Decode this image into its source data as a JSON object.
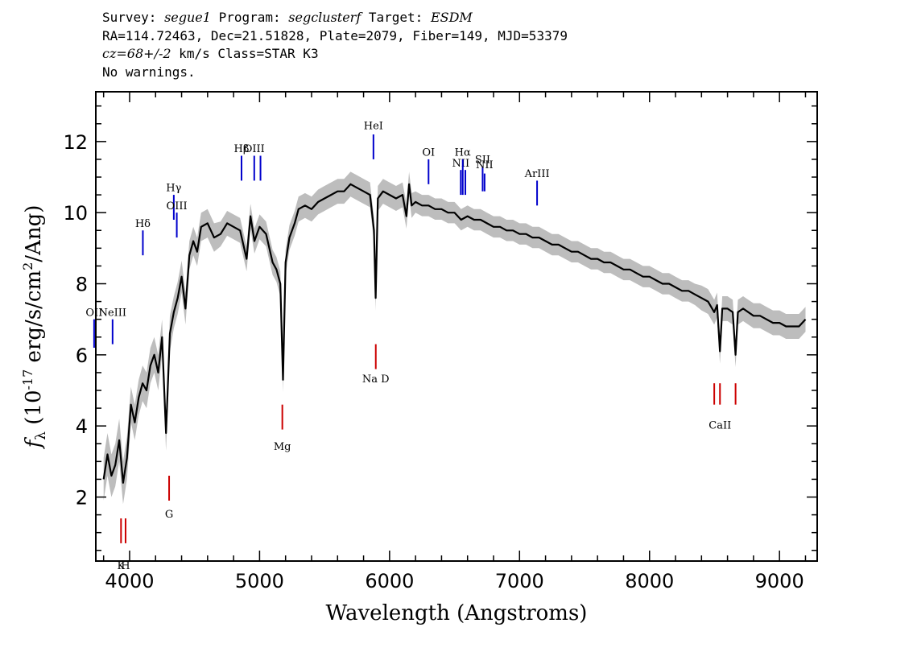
{
  "header": {
    "line1": {
      "survey_label": "Survey: ",
      "survey": "segue1",
      "program_label": " Program: ",
      "program": "segclusterf",
      "target_label": " Target: ",
      "target": "ESDM"
    },
    "line2": "RA=114.72463, Dec=21.51828, Plate=2079, Fiber=149, MJD=53379",
    "line3": {
      "cz": "cz=68+/-2",
      "rest": " km/s Class=STAR K3"
    },
    "line4": "No warnings."
  },
  "colors": {
    "spectrum": "#000000",
    "error_band": "#bdbdbd",
    "emission_line": "#0000cc",
    "absorption_line": "#cc0000",
    "axes": "#000000"
  },
  "chart_data": {
    "type": "line",
    "title": "",
    "xlabel": "Wavelength (Angstroms)",
    "ylabel": "f_λ (10^-17 erg/s/cm^2/Ang)",
    "xlim": [
      3740,
      9290
    ],
    "ylim": [
      0.2,
      13.4
    ],
    "x_ticks": [
      4000,
      5000,
      6000,
      7000,
      8000,
      9000
    ],
    "y_ticks": [
      2,
      4,
      6,
      8,
      10,
      12
    ],
    "grid": false,
    "legend": "none",
    "series": [
      {
        "x": [
          3800,
          3830,
          3860,
          3890,
          3920,
          3950,
          3980,
          4010,
          4040,
          4070,
          4100,
          4130,
          4160,
          4190,
          4220,
          4250,
          4280,
          4310,
          4340,
          4370,
          4400,
          4430,
          4460,
          4490,
          4520,
          4550,
          4600,
          4650,
          4700,
          4750,
          4800,
          4850,
          4900,
          4930,
          4960,
          5000,
          5050,
          5100,
          5130,
          5160,
          5180,
          5200,
          5230,
          5270,
          5300,
          5350,
          5400,
          5450,
          5500,
          5550,
          5600,
          5650,
          5700,
          5750,
          5800,
          5850,
          5880,
          5893,
          5910,
          5950,
          6000,
          6050,
          6100,
          6130,
          6150,
          6170,
          6200,
          6250,
          6300,
          6350,
          6400,
          6450,
          6500,
          6550,
          6600,
          6650,
          6700,
          6750,
          6800,
          6850,
          6900,
          6950,
          7000,
          7050,
          7100,
          7150,
          7200,
          7250,
          7300,
          7350,
          7400,
          7450,
          7500,
          7550,
          7600,
          7650,
          7700,
          7750,
          7800,
          7850,
          7900,
          7950,
          8000,
          8050,
          8100,
          8150,
          8200,
          8250,
          8300,
          8350,
          8400,
          8450,
          8498,
          8520,
          8542,
          8560,
          8600,
          8640,
          8662,
          8680,
          8720,
          8760,
          8800,
          8850,
          8900,
          8950,
          9000,
          9050,
          9100,
          9150,
          9200
        ],
        "flux": [
          2.5,
          3.2,
          2.6,
          2.9,
          3.6,
          2.4,
          3.1,
          4.6,
          4.1,
          4.8,
          5.2,
          5.0,
          5.7,
          6.0,
          5.5,
          6.5,
          3.8,
          6.6,
          7.2,
          7.6,
          8.2,
          7.3,
          8.8,
          9.2,
          8.9,
          9.6,
          9.7,
          9.3,
          9.4,
          9.7,
          9.6,
          9.5,
          8.7,
          9.9,
          9.2,
          9.6,
          9.4,
          8.6,
          8.4,
          8.0,
          5.3,
          8.6,
          9.3,
          9.7,
          10.1,
          10.2,
          10.1,
          10.3,
          10.4,
          10.5,
          10.6,
          10.6,
          10.8,
          10.7,
          10.6,
          10.5,
          9.5,
          7.6,
          10.4,
          10.6,
          10.5,
          10.4,
          10.5,
          9.9,
          10.8,
          10.2,
          10.3,
          10.2,
          10.2,
          10.1,
          10.1,
          10.0,
          10.0,
          9.8,
          9.9,
          9.8,
          9.8,
          9.7,
          9.6,
          9.6,
          9.5,
          9.5,
          9.4,
          9.4,
          9.3,
          9.3,
          9.2,
          9.1,
          9.1,
          9.0,
          8.9,
          8.9,
          8.8,
          8.7,
          8.7,
          8.6,
          8.6,
          8.5,
          8.4,
          8.4,
          8.3,
          8.2,
          8.2,
          8.1,
          8.0,
          8.0,
          7.9,
          7.8,
          7.8,
          7.7,
          7.6,
          7.5,
          7.2,
          7.4,
          6.1,
          7.3,
          7.3,
          7.2,
          6.0,
          7.2,
          7.3,
          7.2,
          7.1,
          7.1,
          7.0,
          6.9,
          6.9,
          6.8,
          6.8,
          6.8,
          7.0
        ],
        "err": [
          0.6,
          0.6,
          0.6,
          0.6,
          0.6,
          0.6,
          0.6,
          0.5,
          0.5,
          0.5,
          0.5,
          0.5,
          0.5,
          0.5,
          0.5,
          0.5,
          0.5,
          0.5,
          0.45,
          0.45,
          0.45,
          0.45,
          0.4,
          0.4,
          0.4,
          0.4,
          0.4,
          0.4,
          0.35,
          0.35,
          0.35,
          0.35,
          0.35,
          0.35,
          0.35,
          0.35,
          0.35,
          0.35,
          0.35,
          0.35,
          0.35,
          0.35,
          0.35,
          0.35,
          0.35,
          0.35,
          0.35,
          0.35,
          0.35,
          0.35,
          0.35,
          0.35,
          0.35,
          0.35,
          0.35,
          0.35,
          0.35,
          0.35,
          0.35,
          0.35,
          0.35,
          0.35,
          0.35,
          0.35,
          0.35,
          0.35,
          0.3,
          0.3,
          0.3,
          0.3,
          0.3,
          0.3,
          0.3,
          0.3,
          0.3,
          0.3,
          0.3,
          0.3,
          0.3,
          0.3,
          0.3,
          0.3,
          0.3,
          0.3,
          0.3,
          0.3,
          0.3,
          0.3,
          0.3,
          0.3,
          0.3,
          0.3,
          0.3,
          0.3,
          0.3,
          0.3,
          0.3,
          0.3,
          0.3,
          0.3,
          0.3,
          0.3,
          0.3,
          0.3,
          0.3,
          0.3,
          0.3,
          0.3,
          0.3,
          0.3,
          0.35,
          0.35,
          0.35,
          0.35,
          0.35,
          0.35,
          0.35,
          0.35,
          0.35,
          0.35,
          0.35,
          0.35,
          0.35,
          0.35,
          0.35,
          0.35,
          0.35,
          0.35,
          0.35,
          0.35,
          0.35
        ]
      }
    ],
    "emission_lines": [
      {
        "label": "OII",
        "wave": 3727,
        "y_lo": 6.2,
        "y_hi": 7.0,
        "label_y": 7.1
      },
      {
        "label": "NeIII",
        "wave": 3869,
        "y_lo": 6.3,
        "y_hi": 7.0,
        "label_y": 7.1
      },
      {
        "label": "Hδ",
        "wave": 4102,
        "y_lo": 8.8,
        "y_hi": 9.5,
        "label_y": 9.6
      },
      {
        "label": "Hγ",
        "wave": 4340,
        "y_lo": 9.8,
        "y_hi": 10.5,
        "label_y": 10.6
      },
      {
        "label": "OIII",
        "wave": 4363,
        "y_lo": 9.3,
        "y_hi": 10.0,
        "label_y": 10.1
      },
      {
        "label": "Hβ",
        "wave": 4861,
        "y_lo": 10.9,
        "y_hi": 11.6,
        "label_y": 11.7
      },
      {
        "label": "OIII",
        "wave": 4959,
        "y_lo": 10.9,
        "y_hi": 11.6,
        "label_y": 11.7
      },
      {
        "label": "",
        "wave": 5007,
        "y_lo": 10.9,
        "y_hi": 11.6,
        "label_y": 11.7
      },
      {
        "label": "HeI",
        "wave": 5876,
        "y_lo": 11.5,
        "y_hi": 12.2,
        "label_y": 12.35
      },
      {
        "label": "OI",
        "wave": 6300,
        "y_lo": 10.8,
        "y_hi": 11.5,
        "label_y": 11.6
      },
      {
        "label": "NII",
        "wave": 6548,
        "y_lo": 10.5,
        "y_hi": 11.2,
        "label_y": 11.3
      },
      {
        "label": "Hα",
        "wave": 6563,
        "y_lo": 10.5,
        "y_hi": 11.5,
        "label_y": 11.6
      },
      {
        "label": "",
        "wave": 6583,
        "y_lo": 10.5,
        "y_hi": 11.2,
        "label_y": 11.2
      },
      {
        "label": "SII",
        "wave": 6716,
        "y_lo": 10.6,
        "y_hi": 11.3,
        "label_y": 11.4
      },
      {
        "label": "NII",
        "wave": 6731,
        "y_lo": 10.6,
        "y_hi": 11.1,
        "label_y": 11.25
      },
      {
        "label": "ArIII",
        "wave": 7135,
        "y_lo": 10.2,
        "y_hi": 10.9,
        "label_y": 11.0
      }
    ],
    "absorption_lines": [
      {
        "label": "K",
        "wave": 3934,
        "y_lo": 0.7,
        "y_hi": 1.4,
        "label_y": 0.25
      },
      {
        "label": "H",
        "wave": 3969,
        "y_lo": 0.7,
        "y_hi": 1.4,
        "label_y": 0.25
      },
      {
        "label": "G",
        "wave": 4304,
        "y_lo": 1.9,
        "y_hi": 2.6,
        "label_y": 1.7
      },
      {
        "label": "Mg",
        "wave": 5175,
        "y_lo": 3.9,
        "y_hi": 4.6,
        "label_y": 3.6
      },
      {
        "label": "Na D",
        "wave": 5894,
        "y_lo": 5.6,
        "y_hi": 6.3,
        "label_y": 5.5
      },
      {
        "label": "",
        "wave": 8498,
        "y_lo": 4.6,
        "y_hi": 5.2,
        "label_y": 4.2
      },
      {
        "label": "CaII",
        "wave": 8542,
        "y_lo": 4.6,
        "y_hi": 5.2,
        "label_y": 4.2
      },
      {
        "label": "",
        "wave": 8662,
        "y_lo": 4.6,
        "y_hi": 5.2,
        "label_y": 4.2
      }
    ]
  }
}
